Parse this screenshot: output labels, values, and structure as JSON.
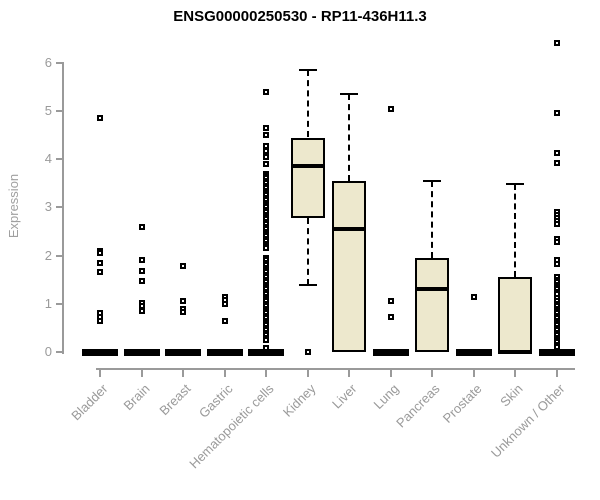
{
  "chart_data": {
    "type": "boxplot",
    "title": "ENSG00000250530 - RP11-436H11.3",
    "ylabel": "Expression",
    "xlabel": "",
    "ylim": [
      0,
      6
    ],
    "yticks": [
      0,
      1,
      2,
      3,
      4,
      5,
      6
    ],
    "grid": false,
    "legend": "none",
    "box_fill_color": "#ede8cd",
    "box_border_color": "#000000",
    "axis_color": "#9a9a9a",
    "categories": [
      "Bladder",
      "Brain",
      "Breast",
      "Gastric",
      "Hematopoietic cells",
      "Kidney",
      "Liver",
      "Lung",
      "Pancreas",
      "Prostate",
      "Skin",
      "Unknown / Other"
    ],
    "series": [
      {
        "category": "Bladder",
        "min": 0,
        "q1": 0,
        "median": 0,
        "q3": 0,
        "max": 0,
        "outliers": [
          4.85,
          2.1,
          2.05,
          1.85,
          1.65,
          0.8,
          0.72,
          0.65
        ]
      },
      {
        "category": "Brain",
        "min": 0,
        "q1": 0,
        "median": 0,
        "q3": 0,
        "max": 0,
        "outliers": [
          2.6,
          1.9,
          1.68,
          1.48,
          1.02,
          0.95,
          0.85
        ]
      },
      {
        "category": "Breast",
        "min": 0,
        "q1": 0,
        "median": 0,
        "q3": 0,
        "max": 0,
        "outliers": [
          1.78,
          1.05,
          0.9,
          0.82
        ]
      },
      {
        "category": "Gastric",
        "min": 0,
        "q1": 0,
        "median": 0,
        "q3": 0,
        "max": 0,
        "outliers": [
          1.15,
          1.08,
          1.0,
          0.65
        ]
      },
      {
        "category": "Hematopoietic cells",
        "min": 0,
        "q1": 0,
        "median": 0,
        "q3": 0,
        "max": 0,
        "outliers": [
          5.4,
          4.65,
          4.5,
          4.28,
          4.18,
          4.05,
          3.9,
          3.7,
          3.65,
          3.6,
          3.55,
          3.5,
          3.45,
          3.4,
          3.35,
          3.3,
          3.25,
          3.2,
          3.15,
          3.1,
          3.05,
          3.0,
          2.95,
          2.9,
          2.85,
          2.8,
          2.75,
          2.7,
          2.65,
          2.6,
          2.55,
          2.5,
          2.45,
          2.4,
          2.35,
          2.3,
          2.25,
          2.2,
          2.15,
          1.95,
          1.9,
          1.85,
          1.8,
          1.75,
          1.7,
          1.65,
          1.6,
          1.55,
          1.5,
          1.45,
          1.4,
          1.35,
          1.3,
          1.25,
          1.2,
          1.15,
          1.1,
          1.05,
          1.0,
          0.95,
          0.9,
          0.85,
          0.8,
          0.75,
          0.7,
          0.65,
          0.6,
          0.55,
          0.5,
          0.45,
          0.4,
          0.35,
          0.3,
          0.25,
          0.08
        ]
      },
      {
        "category": "Kidney",
        "min": 1.4,
        "q1": 2.78,
        "median": 3.85,
        "q3": 4.45,
        "max": 5.85,
        "outliers": [
          0
        ]
      },
      {
        "category": "Liver",
        "min": 0,
        "q1": 0,
        "median": 2.55,
        "q3": 3.55,
        "max": 5.35,
        "outliers": []
      },
      {
        "category": "Lung",
        "min": 0,
        "q1": 0,
        "median": 0,
        "q3": 0,
        "max": 0,
        "outliers": [
          5.05,
          1.05,
          0.72
        ]
      },
      {
        "category": "Pancreas",
        "min": 0,
        "q1": 0,
        "median": 1.3,
        "q3": 1.95,
        "max": 3.55,
        "outliers": []
      },
      {
        "category": "Prostate",
        "min": 0,
        "q1": 0,
        "median": 0,
        "q3": 0,
        "max": 0,
        "outliers": [
          1.15
        ]
      },
      {
        "category": "Skin",
        "min": 0,
        "q1": 0,
        "median": 0,
        "q3": 1.55,
        "max": 3.48,
        "outliers": []
      },
      {
        "category": "Unknown / Other",
        "min": 0,
        "q1": 0,
        "median": 0,
        "q3": 0,
        "max": 0,
        "outliers": [
          6.42,
          4.95,
          4.12,
          3.92,
          2.9,
          2.84,
          2.78,
          2.72,
          2.66,
          2.35,
          2.28,
          1.9,
          1.82,
          1.55,
          1.5,
          1.45,
          1.4,
          1.35,
          1.3,
          1.25,
          1.2,
          1.12,
          1.05,
          1.0,
          0.95,
          0.9,
          0.85,
          0.8,
          0.75,
          0.7,
          0.65,
          0.6,
          0.55,
          0.5,
          0.45,
          0.4,
          0.35,
          0.3,
          0.25,
          0.2,
          0.15,
          0.1
        ]
      }
    ]
  }
}
